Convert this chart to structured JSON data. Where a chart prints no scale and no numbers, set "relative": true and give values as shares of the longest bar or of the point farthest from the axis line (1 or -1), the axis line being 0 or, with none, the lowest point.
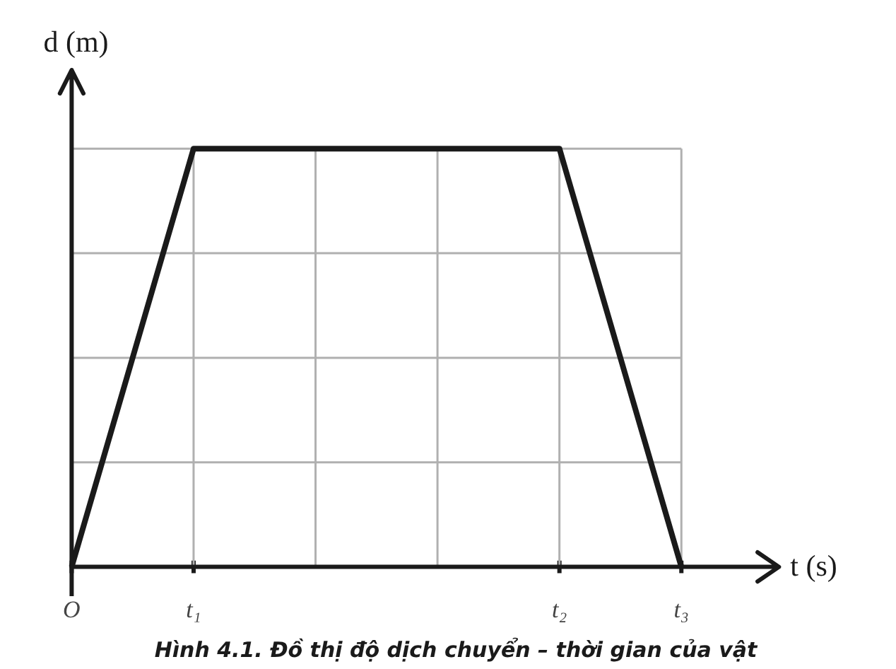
{
  "chart_data": {
    "type": "line",
    "title": "Hình 4.1. Đồ thị độ dịch chuyển – thời gian của vật",
    "xlabel": "t (s)",
    "ylabel": "d (m)",
    "relative": true,
    "categories": [
      "O",
      "t₁",
      null,
      null,
      "t₂",
      "t₃"
    ],
    "series": [
      {
        "color": "#1a1a1a",
        "values": [
          0,
          1,
          1,
          1,
          1,
          0
        ]
      }
    ],
    "grid": true,
    "marker": "none",
    "line_style": "solid"
  }
}
